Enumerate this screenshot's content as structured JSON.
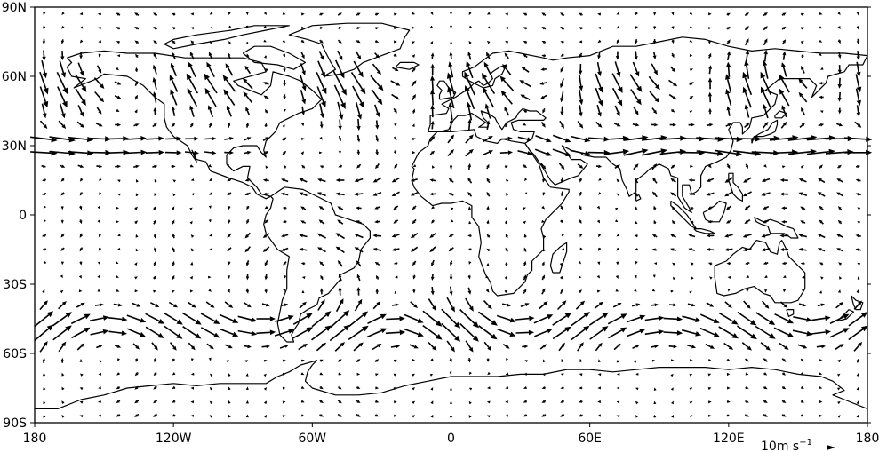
{
  "map": {
    "projection": "equirectangular",
    "lon_range": [
      -180,
      180
    ],
    "lat_range": [
      -90,
      90
    ],
    "x_ticks": [
      {
        "lon": -180,
        "label": "180"
      },
      {
        "lon": -120,
        "label": "120W"
      },
      {
        "lon": -60,
        "label": "60W"
      },
      {
        "lon": 0,
        "label": "0"
      },
      {
        "lon": 60,
        "label": "60E"
      },
      {
        "lon": 120,
        "label": "120E"
      },
      {
        "lon": 180,
        "label": "180"
      }
    ],
    "y_ticks": [
      {
        "lat": 90,
        "label": "90N"
      },
      {
        "lat": 60,
        "label": "60N"
      },
      {
        "lat": 30,
        "label": "30N"
      },
      {
        "lat": 0,
        "label": "0"
      },
      {
        "lat": -30,
        "label": "30S"
      },
      {
        "lat": -60,
        "label": "60S"
      },
      {
        "lat": -90,
        "label": "90S"
      }
    ],
    "vector_key": {
      "label_base": "10m s",
      "label_exponent": "−1",
      "magnitude_m_s": 10
    },
    "colors": {
      "arrows": "#000000",
      "coastlines": "#000000",
      "frame": "#000000"
    }
  }
}
